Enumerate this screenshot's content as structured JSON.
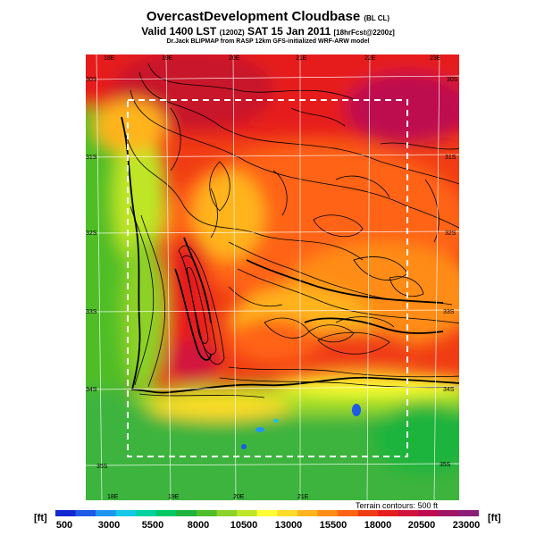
{
  "header": {
    "title": "OvercastDevelopment Cloudbase",
    "title_tag": "(BL CL)",
    "valid_line": "Valid 1400 LST",
    "valid_utc": "(1200Z)",
    "valid_date": "SAT 15 Jan 2011",
    "forecast_tag": "[18hrFcst@2200z]",
    "credit": "Dr.Jack BLIPMAP from RASP 12km GFS-initialized WRF-ARW model"
  },
  "map": {
    "lon_top": [
      "18E",
      "19E",
      "20E",
      "21E",
      "22E",
      "23E"
    ],
    "lon_bottom": [
      "18E",
      "19E",
      "20E",
      "21E"
    ],
    "lat_left": [
      "30S",
      "31S",
      "32S",
      "33S",
      "34S",
      "35S"
    ],
    "lat_right": [
      "30S",
      "31S",
      "32S",
      "33S",
      "34S",
      "35S"
    ],
    "terrain_note": "Terrain contours: 500 ft",
    "colors": {
      "sea": "#3cb43c",
      "inland_low": "#ff5a00",
      "inland_high": "#e61e28",
      "coast": "#a0dc28",
      "boundary": "#ffffff"
    }
  },
  "colorbar": {
    "unit_left": "[ft]",
    "unit_right": "[ft]",
    "labels": [
      "500",
      "3000",
      "5500",
      "8000",
      "10500",
      "13000",
      "15500",
      "18000",
      "20500",
      "23000"
    ],
    "colors": [
      "#1428d2",
      "#1e5ae6",
      "#1e96f0",
      "#14c8e6",
      "#00d2a0",
      "#00c864",
      "#1eb43c",
      "#50be28",
      "#8cd228",
      "#bee628",
      "#ffff32",
      "#ffdc28",
      "#ffb41e",
      "#ff8c14",
      "#ff6414",
      "#f03c14",
      "#e61e1e",
      "#d2143c",
      "#be0a50",
      "#a01464",
      "#8c1e78"
    ]
  }
}
